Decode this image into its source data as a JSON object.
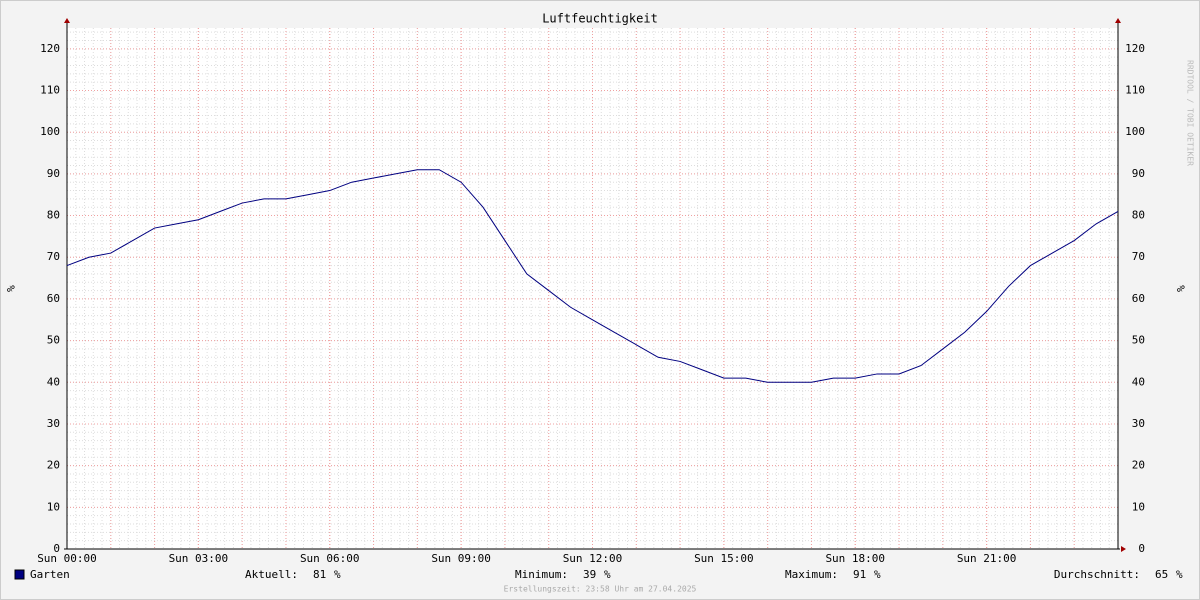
{
  "chart_data": {
    "type": "line",
    "title": "Luftfeuchtigkeit",
    "y_label": "%",
    "watermark": "RRDTOOL / TOBI OETIKER",
    "footer": "Erstellungszeit: 23:58 Uhr am 27.04.2025",
    "x": [
      0,
      0.5,
      1,
      1.5,
      2,
      2.5,
      3,
      3.5,
      4,
      4.5,
      5,
      5.5,
      6,
      6.5,
      7,
      7.5,
      8,
      8.5,
      9,
      9.5,
      10,
      10.5,
      11,
      11.5,
      12,
      12.5,
      13,
      13.5,
      14,
      14.5,
      15,
      15.5,
      16,
      16.5,
      17,
      17.5,
      18,
      18.5,
      19,
      19.5,
      20,
      20.5,
      21,
      21.5,
      22,
      22.5,
      23,
      23.5,
      24
    ],
    "series": [
      {
        "name": "Garten",
        "color": "#000080",
        "values": [
          68,
          70,
          71,
          74,
          77,
          78,
          79,
          81,
          83,
          84,
          84,
          85,
          86,
          88,
          89,
          90,
          91,
          91,
          88,
          82,
          74,
          66,
          62,
          58,
          55,
          52,
          49,
          46,
          45,
          43,
          41,
          41,
          40,
          40,
          40,
          41,
          41,
          42,
          42,
          44,
          48,
          52,
          57,
          63,
          68,
          71,
          74,
          78,
          81
        ]
      }
    ],
    "stats": [
      {
        "label": "Aktuell:",
        "value": 81
      },
      {
        "label": "Minimum:",
        "value": 39
      },
      {
        "label": "Maximum:",
        "value": 91
      },
      {
        "label": "Durchschnitt:",
        "value": 65
      }
    ],
    "stat_unit": "%",
    "xlim": [
      0,
      24
    ],
    "xticks": [
      {
        "value": 0,
        "label": "Sun 00:00"
      },
      {
        "value": 3,
        "label": "Sun 03:00"
      },
      {
        "value": 6,
        "label": "Sun 06:00"
      },
      {
        "value": 9,
        "label": "Sun 09:00"
      },
      {
        "value": 12,
        "label": "Sun 12:00"
      },
      {
        "value": 15,
        "label": "Sun 15:00"
      },
      {
        "value": 18,
        "label": "Sun 18:00"
      },
      {
        "value": 21,
        "label": "Sun 21:00"
      }
    ],
    "ylim": [
      0,
      125
    ],
    "yticks": [
      0,
      10,
      20,
      30,
      40,
      50,
      60,
      70,
      80,
      90,
      100,
      110,
      120
    ],
    "grid": true
  }
}
